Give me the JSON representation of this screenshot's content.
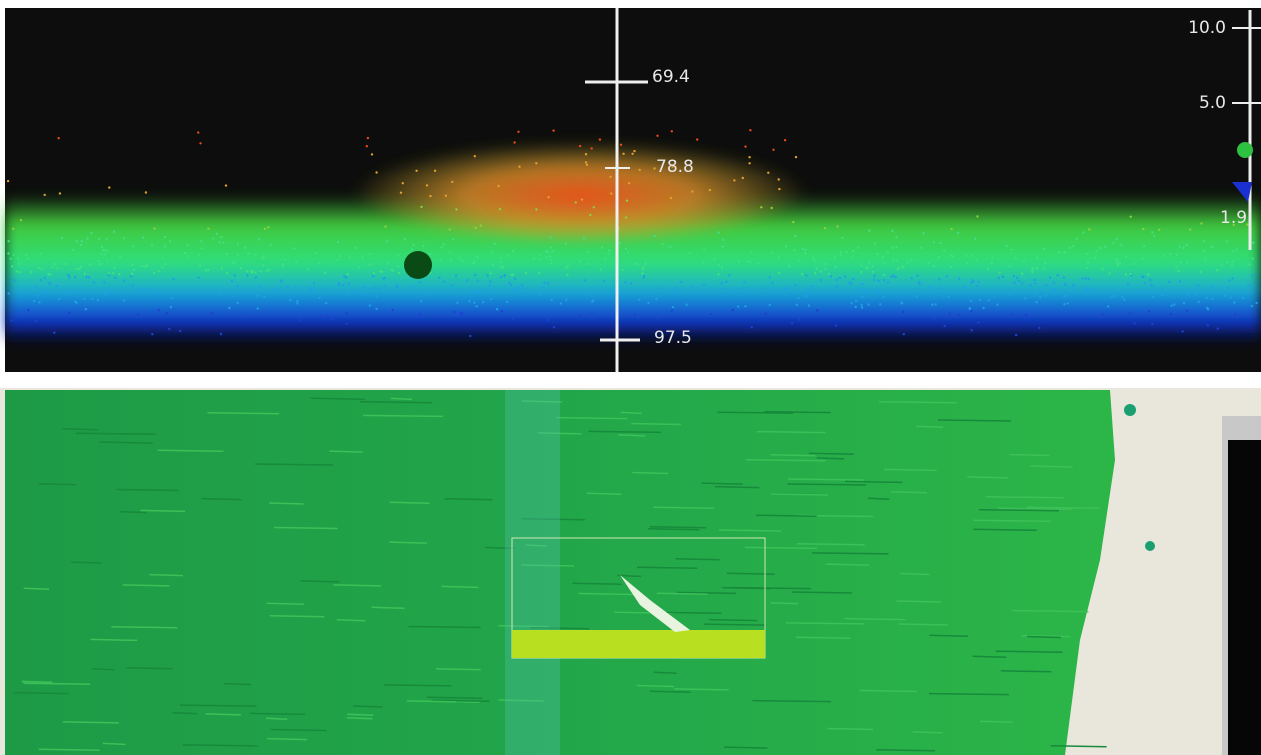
{
  "profile_view": {
    "depth_labels": [
      "69.4",
      "78.8",
      "97.5"
    ],
    "scale_labels": [
      "10.0",
      "5.0",
      "1.9"
    ]
  }
}
